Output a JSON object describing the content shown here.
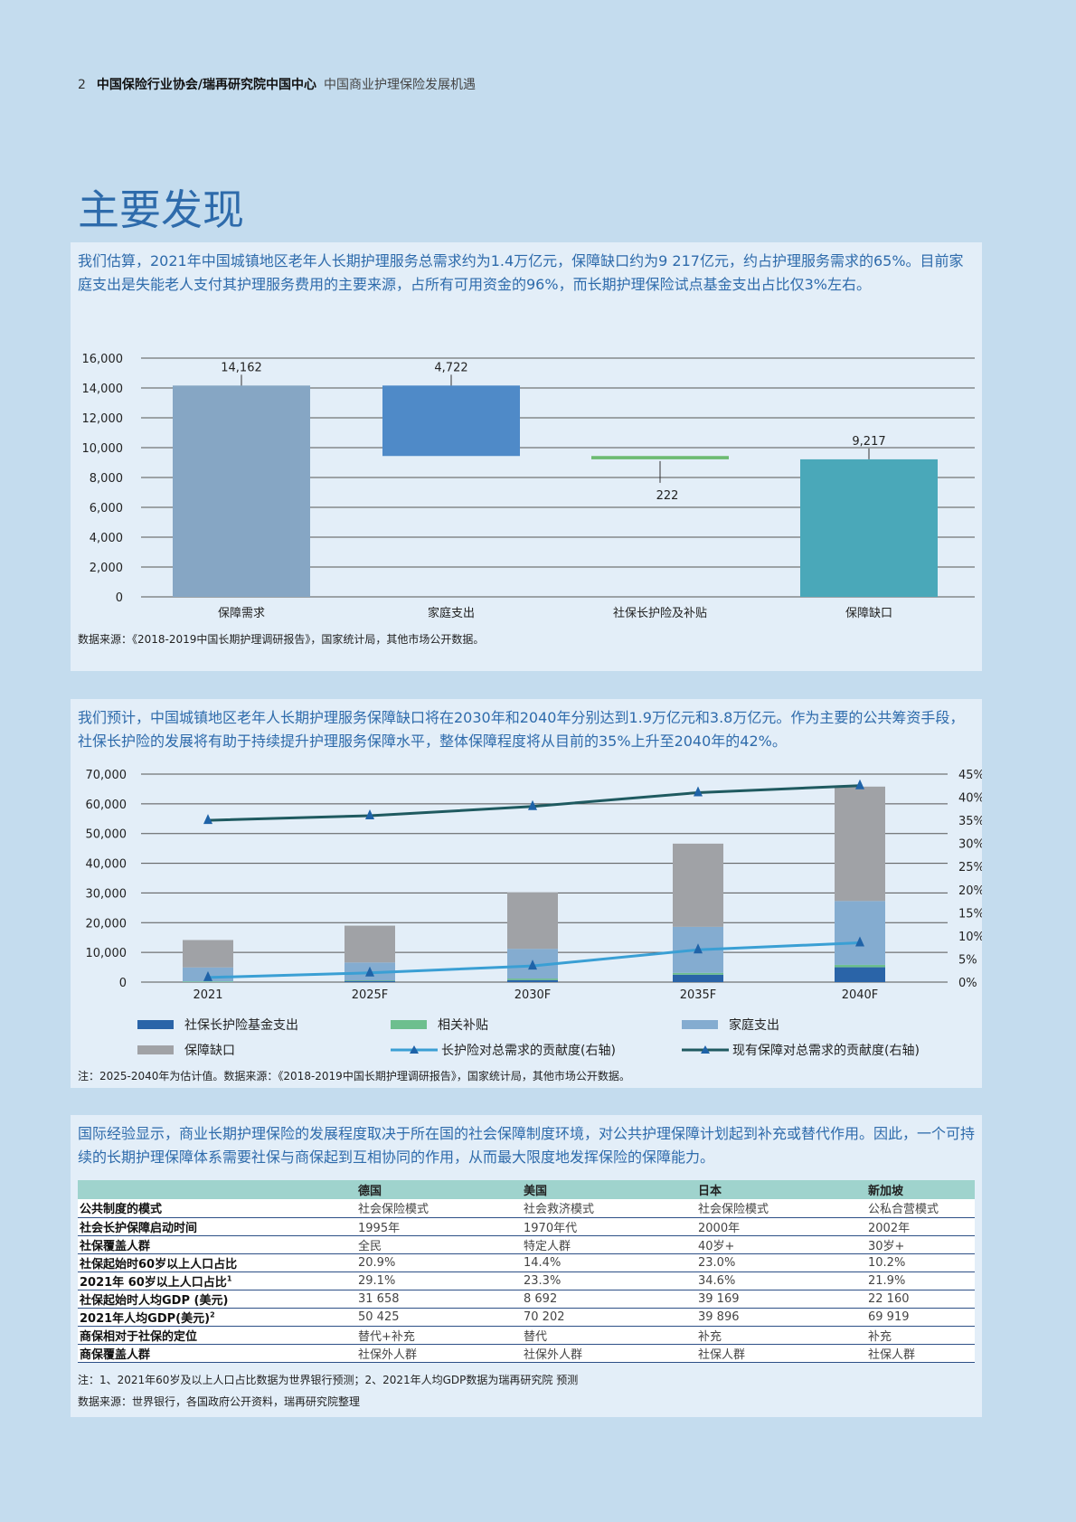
{
  "header": {
    "page_number": "2",
    "organization": "中国保险行业协会/瑞再研究院中国中心",
    "document_title": "中国商业护理保险发展机遇"
  },
  "title": "主要发现",
  "section1": {
    "text": "我们估算，2021年中国城镇地区老年人长期护理服务总需求约为1.4万亿元，保障缺口约为9 217亿元，约占护理服务需求的65%。目前家庭支出是失能老人支付其护理服务费用的主要来源，占所有可用资金的96%，而长期护理保险试点基金支出占比仅3%左右。",
    "source": "数据来源：《2018-2019中国长期护理调研报告》，国家统计局，其他市场公开数据。"
  },
  "section2": {
    "text": "我们预计，中国城镇地区老年人长期护理服务保障缺口将在2030年和2040年分别达到1.9万亿元和3.8万亿元。作为主要的公共筹资手段，社保长护险的发展将有助于持续提升护理服务保障水平，整体保障程度将从目前的35%上升至2040年的42%。",
    "note": "注：2025-2040年为估计值。数据来源：《2018-2019中国长期护理调研报告》，国家统计局，其他市场公开数据。"
  },
  "chart_data": [
    {
      "type": "bar",
      "subtype": "waterfall",
      "categories": [
        "保障需求",
        "家庭支出",
        "社保长护险及补贴",
        "保障缺口"
      ],
      "values": [
        14162,
        4722,
        222,
        9217
      ],
      "data_labels": [
        "14,162",
        "4,722",
        "222",
        "9,217"
      ],
      "ranges": [
        [
          0,
          14162
        ],
        [
          9440,
          14162
        ],
        [
          9218,
          9440
        ],
        [
          0,
          9217
        ]
      ],
      "colors": [
        "#86a6c4",
        "#4f8ac8",
        "#6dbb72",
        "#4aa8b9"
      ],
      "ylim": [
        0,
        16000
      ],
      "yticks": [
        "0",
        "2,000",
        "4,000",
        "6,000",
        "8,000",
        "10,000",
        "12,000",
        "14,000",
        "16,000"
      ],
      "grid": true
    },
    {
      "type": "bar",
      "subtype": "stacked-bar-with-lines",
      "categories": [
        "2021",
        "2025F",
        "2030F",
        "2035F",
        "2040F"
      ],
      "series": [
        {
          "name": "社保长护险基金支出",
          "color": "#2a64a8",
          "values": [
            0,
            400,
            700,
            2500,
            5000
          ]
        },
        {
          "name": "相关补贴",
          "color": "#6dbf8e",
          "values": [
            222,
            200,
            500,
            600,
            800
          ]
        },
        {
          "name": "家庭支出",
          "color": "#84acd0",
          "values": [
            4722,
            6000,
            10000,
            15500,
            21500
          ]
        },
        {
          "name": "保障缺口",
          "color": "#a0a2a6",
          "values": [
            9217,
            12400,
            19000,
            28000,
            38500
          ]
        }
      ],
      "line_series": [
        {
          "name": "长护险对总需求的贡献度(右轴)",
          "color": "#3a9fd4",
          "values": [
            1,
            2,
            3.5,
            7,
            8.5
          ]
        },
        {
          "name": "现有保障对总需求的贡献度(右轴)",
          "color": "#1f5a60",
          "values": [
            35,
            36,
            38,
            41,
            42.5
          ]
        }
      ],
      "ylim": [
        0,
        70000
      ],
      "yticks": [
        "0",
        "10,000",
        "20,000",
        "30,000",
        "40,000",
        "50,000",
        "60,000",
        "70,000"
      ],
      "y2lim": [
        0,
        45
      ],
      "y2ticks": [
        "0%",
        "5%",
        "10%",
        "15%",
        "20%",
        "25%",
        "30%",
        "35%",
        "40%",
        "45%"
      ],
      "grid": true,
      "legend": "bottom"
    }
  ],
  "section3": {
    "text": "国际经验显示，商业长期护理保险的发展程度取决于所在国的社会保障制度环境，对公共护理保障计划起到补充或替代作用。因此，一个可持续的长期护理保障体系需要社保与商保起到互相协同的作用，从而最大限度地发挥保险的保障能力。",
    "table": {
      "columns": [
        "",
        "德国",
        "美国",
        "日本",
        "新加坡"
      ],
      "rows": [
        {
          "label": "公共制度的模式",
          "sup": "",
          "cells": [
            "社会保险模式",
            "社会救济模式",
            "社会保险模式",
            "公私合营模式"
          ]
        },
        {
          "label": "社会长护保障启动时间",
          "sup": "",
          "cells": [
            "1995年",
            "1970年代",
            "2000年",
            "2002年"
          ]
        },
        {
          "label": "社保覆盖人群",
          "sup": "",
          "cells": [
            "全民",
            "特定人群",
            "40岁+",
            "30岁+"
          ]
        },
        {
          "label": "社保起始时60岁以上人口占比",
          "sup": "",
          "cells": [
            "20.9%",
            "14.4%",
            "23.0%",
            "10.2%"
          ]
        },
        {
          "label": "2021年 60岁以上人口占比",
          "sup": "1",
          "cells": [
            "29.1%",
            "23.3%",
            "34.6%",
            "21.9%"
          ]
        },
        {
          "label": "社保起始时人均GDP (美元)",
          "sup": "",
          "cells": [
            "31 658",
            "8 692",
            "39 169",
            "22 160"
          ]
        },
        {
          "label": "2021年人均GDP(美元)",
          "sup": "2",
          "cells": [
            "50 425",
            "70 202",
            "39 896",
            "69 919"
          ]
        },
        {
          "label": "商保相对于社保的定位",
          "sup": "",
          "cells": [
            "替代+补充",
            "替代",
            "补充",
            "补充"
          ]
        },
        {
          "label": "商保覆盖人群",
          "sup": "",
          "cells": [
            "社保外人群",
            "社保外人群",
            "社保人群",
            "社保人群"
          ]
        }
      ]
    },
    "note": "注：1、2021年60岁及以上人口占比数据为世界银行预测；2、2021年人均GDP数据为瑞再研究院 预测",
    "source": "数据来源：世界银行，各国政府公开资料，瑞再研究院整理"
  }
}
